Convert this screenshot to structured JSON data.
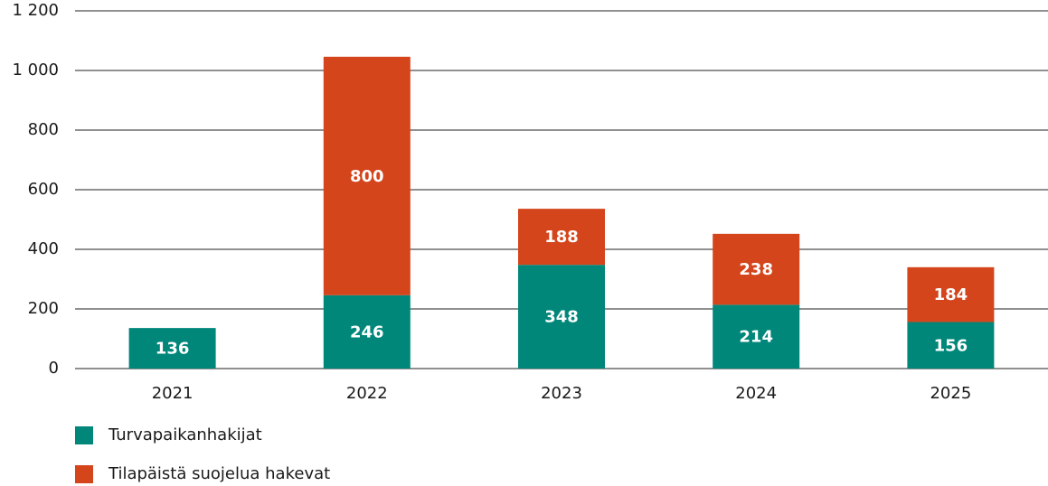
{
  "chart_data": {
    "type": "stacked_bar",
    "categories": [
      "2021",
      "2022",
      "2023",
      "2024",
      "2025"
    ],
    "series": [
      {
        "name": "Turvapaikanhakijat",
        "color": "#00877a",
        "values": [
          136,
          246,
          348,
          214,
          156
        ]
      },
      {
        "name": "Tilapäistä suojelua hakevat",
        "color": "#d4451c",
        "values": [
          null,
          800,
          188,
          238,
          184
        ]
      }
    ],
    "ylim": [
      0,
      1200
    ],
    "yticks": [
      0,
      200,
      400,
      600,
      800,
      {
        "value": 1000,
        "label": "1 000"
      },
      {
        "value": 1200,
        "label": "1 200"
      }
    ],
    "grid": true
  }
}
